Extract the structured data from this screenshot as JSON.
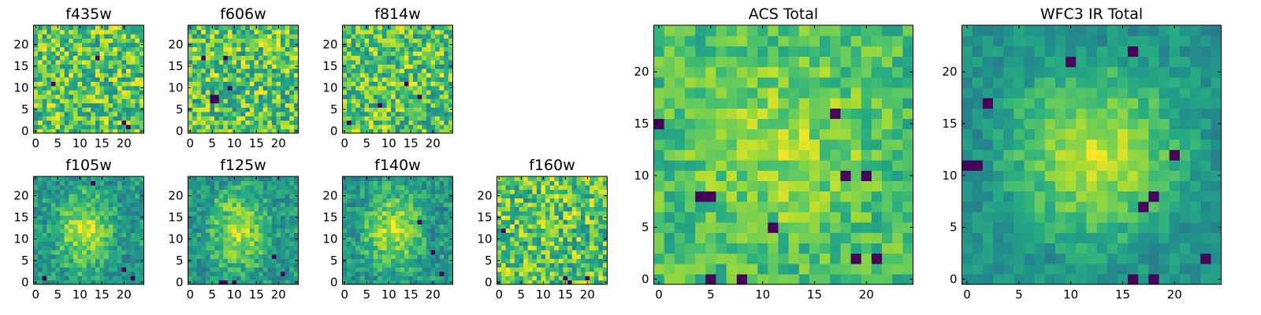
{
  "chart_data": [
    {
      "type": "heatmap",
      "title": "f435w",
      "xticks": [
        0,
        5,
        10,
        15,
        20
      ],
      "yticks": [
        0,
        5,
        10,
        15,
        20
      ],
      "xlim": [
        0,
        24
      ],
      "ylim": [
        0,
        24
      ],
      "colormap": "viridis",
      "pattern": "noise",
      "dark_cells": [
        [
          14,
          17
        ],
        [
          20,
          2
        ],
        [
          21,
          1
        ],
        [
          4,
          11
        ]
      ]
    },
    {
      "type": "heatmap",
      "title": "f606w",
      "xticks": [
        0,
        5,
        10,
        15,
        20
      ],
      "yticks": [
        0,
        5,
        10,
        15,
        20
      ],
      "xlim": [
        0,
        24
      ],
      "ylim": [
        0,
        24
      ],
      "colormap": "viridis",
      "pattern": "noise",
      "dark_cells": [
        [
          5,
          8
        ],
        [
          6,
          8
        ],
        [
          5,
          7
        ],
        [
          6,
          7
        ],
        [
          9,
          10
        ],
        [
          3,
          17
        ],
        [
          8,
          17
        ]
      ]
    },
    {
      "type": "heatmap",
      "title": "f814w",
      "xticks": [
        0,
        5,
        10,
        15,
        20
      ],
      "yticks": [
        0,
        5,
        10,
        15,
        20
      ],
      "xlim": [
        0,
        24
      ],
      "ylim": [
        0,
        24
      ],
      "colormap": "viridis",
      "pattern": "noise",
      "dark_cells": [
        [
          14,
          11
        ],
        [
          17,
          8
        ],
        [
          1,
          2
        ],
        [
          8,
          6
        ]
      ]
    },
    {
      "type": "heatmap",
      "title": "f105w",
      "xticks": [
        0,
        5,
        10,
        15,
        20
      ],
      "yticks": [
        0,
        5,
        10,
        15,
        20
      ],
      "xlim": [
        0,
        24
      ],
      "ylim": [
        0,
        24
      ],
      "colormap": "viridis",
      "pattern": "blob",
      "dark_cells": [
        [
          2,
          1
        ],
        [
          20,
          3
        ],
        [
          22,
          1
        ],
        [
          13,
          23
        ]
      ]
    },
    {
      "type": "heatmap",
      "title": "f125w",
      "xticks": [
        0,
        5,
        10,
        15,
        20
      ],
      "yticks": [
        0,
        5,
        10,
        15,
        20
      ],
      "xlim": [
        0,
        24
      ],
      "ylim": [
        0,
        24
      ],
      "colormap": "viridis",
      "pattern": "blob",
      "dark_cells": [
        [
          7,
          0
        ],
        [
          8,
          0
        ],
        [
          10,
          0
        ],
        [
          19,
          6
        ],
        [
          21,
          2
        ]
      ]
    },
    {
      "type": "heatmap",
      "title": "f140w",
      "xticks": [
        0,
        5,
        10,
        15,
        20
      ],
      "yticks": [
        0,
        5,
        10,
        15,
        20
      ],
      "xlim": [
        0,
        24
      ],
      "ylim": [
        0,
        24
      ],
      "colormap": "viridis",
      "pattern": "blob",
      "dark_cells": [
        [
          20,
          7
        ],
        [
          22,
          2
        ],
        [
          17,
          14
        ]
      ]
    },
    {
      "type": "heatmap",
      "title": "f160w",
      "xticks": [
        0,
        5,
        10,
        15,
        20
      ],
      "yticks": [
        0,
        5,
        10,
        15,
        20
      ],
      "xlim": [
        0,
        24
      ],
      "ylim": [
        0,
        24
      ],
      "colormap": "viridis",
      "pattern": "noise",
      "dark_cells": [
        [
          16,
          0
        ],
        [
          20,
          1
        ],
        [
          1,
          12
        ],
        [
          15,
          1
        ]
      ]
    },
    {
      "type": "heatmap",
      "title": "ACS Total",
      "xticks": [
        0,
        5,
        10,
        15,
        20
      ],
      "yticks": [
        0,
        5,
        10,
        15,
        20
      ],
      "xlim": [
        0,
        24
      ],
      "ylim": [
        0,
        24
      ],
      "colormap": "viridis",
      "pattern": "noise_center",
      "dark_cells": [
        [
          4,
          8
        ],
        [
          5,
          8
        ],
        [
          17,
          16
        ],
        [
          18,
          10
        ],
        [
          20,
          10
        ],
        [
          11,
          5
        ],
        [
          5,
          0
        ],
        [
          8,
          0
        ],
        [
          19,
          2
        ],
        [
          21,
          2
        ],
        [
          0,
          15
        ]
      ]
    },
    {
      "type": "heatmap",
      "title": "WFC3 IR Total",
      "xticks": [
        0,
        5,
        10,
        15,
        20
      ],
      "yticks": [
        0,
        5,
        10,
        15,
        20
      ],
      "xlim": [
        0,
        24
      ],
      "ylim": [
        0,
        24
      ],
      "colormap": "viridis",
      "pattern": "blob_center",
      "dark_cells": [
        [
          10,
          21
        ],
        [
          16,
          22
        ],
        [
          17,
          7
        ],
        [
          18,
          8
        ],
        [
          0,
          11
        ],
        [
          1,
          11
        ],
        [
          20,
          12
        ],
        [
          16,
          0
        ],
        [
          18,
          0
        ],
        [
          2,
          17
        ],
        [
          23,
          2
        ]
      ]
    }
  ]
}
